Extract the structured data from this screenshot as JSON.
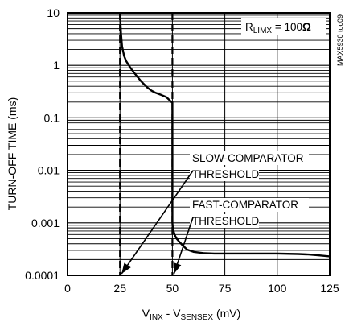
{
  "chart_data": {
    "type": "line",
    "title": "",
    "xlabel": {
      "main": "V",
      "sub1": "INX",
      "mid": " - V",
      "sub2": "SENSEX",
      "tail": " (mV)"
    },
    "ylabel": "TURN-OFF TIME (ms)",
    "xlim": [
      0,
      125
    ],
    "ylim": [
      0.0001,
      10
    ],
    "yscale": "log",
    "grid": true,
    "x_ticks": [
      0,
      25,
      50,
      75,
      100,
      125
    ],
    "x_tick_labels": [
      "0",
      "25",
      "50",
      "75",
      "100",
      "125"
    ],
    "y_ticks": [
      0.0001,
      0.001,
      0.01,
      0.1,
      1,
      10
    ],
    "y_tick_labels": [
      "0.0001",
      "0.001",
      "0.01",
      "0.1",
      "1",
      "10"
    ],
    "condition": {
      "main": "R",
      "sub": "LIMX",
      "value": " = 100",
      "unit": "Ω"
    },
    "figure_id": "MAX5930 toc09",
    "thresholds": [
      {
        "name": "slow",
        "x": 25
      },
      {
        "name": "fast",
        "x": 50
      }
    ],
    "annotations": [
      {
        "name": "slow",
        "line1": "SLOW-COMPARATOR",
        "line2": "THRESHOLD",
        "points_to_x": 25
      },
      {
        "name": "fast",
        "line1": "FAST-COMPARATOR",
        "line2": "THRESHOLD",
        "points_to_x": 50
      }
    ],
    "series": [
      {
        "x": [
          25,
          25.2,
          25.5,
          26,
          27,
          28,
          30,
          32,
          35,
          38,
          40,
          42,
          45,
          47,
          48,
          49,
          49.6,
          50,
          50,
          50.2,
          51,
          52,
          53,
          55,
          57,
          60,
          65,
          70,
          80,
          90,
          100,
          110,
          115,
          120,
          125
        ],
        "y": [
          10,
          7,
          4,
          2.3,
          1.5,
          1.2,
          0.9,
          0.7,
          0.5,
          0.38,
          0.33,
          0.3,
          0.27,
          0.25,
          0.23,
          0.21,
          0.2,
          0.2,
          0.001,
          0.0008,
          0.0006,
          0.0005,
          0.00045,
          0.00037,
          0.00031,
          0.00028,
          0.000265,
          0.00026,
          0.00026,
          0.00026,
          0.00026,
          0.000255,
          0.00025,
          0.00024,
          0.00023
        ]
      }
    ]
  }
}
